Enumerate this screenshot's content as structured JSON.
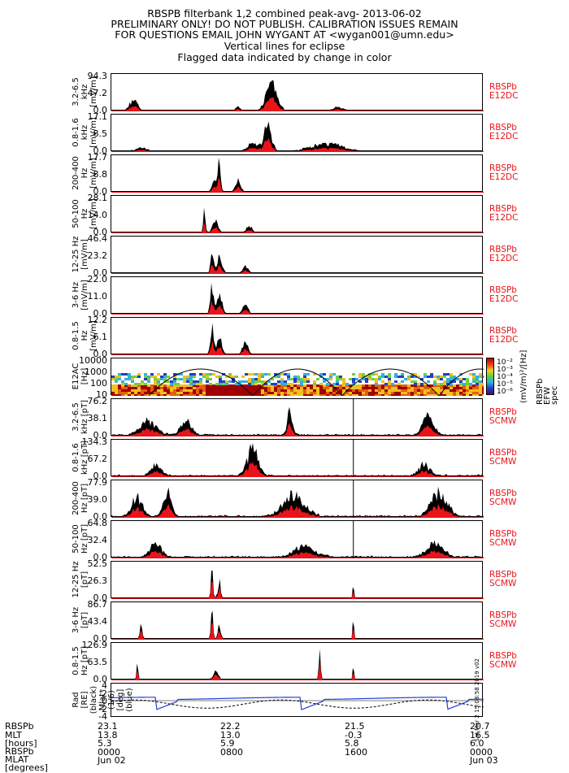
{
  "header": {
    "line1": "RBSPB filterbank 1,2 combined peak-avg- 2013-06-02",
    "line2": "PRELIMINARY ONLY! DO NOT PUBLISH. CALIBRATION ISSUES REMAIN",
    "line3": "FOR QUESTIONS EMAIL JOHN WYGANT AT <wygan001@umn.edu>",
    "line4": "Vertical lines for eclipse",
    "line5": "Flagged data indicated by change in color"
  },
  "colors": {
    "peak": "#000000",
    "avg": "#e8141a",
    "label": "#e8141a",
    "mlat": "#1f3fd8"
  },
  "chart_data": [
    {
      "type": "area",
      "ylabel": "3.2-6.5 kHz [mV/m]",
      "yticks": [
        "0.0",
        "47.2",
        "94.3"
      ],
      "ylim": [
        0,
        94.3
      ],
      "instrument": "RBSPb",
      "sensor": "E12DC"
    },
    {
      "type": "area",
      "ylabel": "0.8-1.6 kHz [mV/m]",
      "yticks": [
        "0.0",
        "8.5",
        "17.1"
      ],
      "ylim": [
        0,
        17.1
      ],
      "instrument": "RBSPb",
      "sensor": "E12DC"
    },
    {
      "type": "area",
      "ylabel": "200-400 Hz [mV/m]",
      "yticks": [
        "0.0",
        "8.8",
        "17.7"
      ],
      "ylim": [
        0,
        17.7
      ],
      "instrument": "RBSPb",
      "sensor": "E12DC"
    },
    {
      "type": "area",
      "ylabel": "50-100 Hz [mV/m]",
      "yticks": [
        "0.0",
        "14.0",
        "28.1"
      ],
      "ylim": [
        0,
        28.1
      ],
      "instrument": "RBSPb",
      "sensor": "E12DC"
    },
    {
      "type": "area",
      "ylabel": "12-25 Hz [mV/m]",
      "yticks": [
        "0.0",
        "23.2",
        "46.4"
      ],
      "ylim": [
        0,
        46.4
      ],
      "instrument": "RBSPb",
      "sensor": "E12DC"
    },
    {
      "type": "area",
      "ylabel": "3-6 Hz [mV/m]",
      "yticks": [
        "0.0",
        "11.0",
        "22.0"
      ],
      "ylim": [
        0,
        22.0
      ],
      "instrument": "RBSPb",
      "sensor": "E12DC"
    },
    {
      "type": "area",
      "ylabel": "0.8-1.5 Hz [mV/m]",
      "yticks": [
        "0.0",
        "6.1",
        "12.2"
      ],
      "ylim": [
        0,
        12.2
      ],
      "instrument": "RBSPb",
      "sensor": "E12DC"
    },
    {
      "type": "heatmap",
      "ylabel": "E12AC [Hz]",
      "yticks": [
        "10",
        "100",
        "1000",
        "10000"
      ],
      "colorbar_label": "(mV/m)²/[Hz]",
      "colorbar_title": "RBSPb EFW spec",
      "colorbar_ticks": [
        "10⁻²",
        "10⁻³",
        "10⁻⁴",
        "10⁻⁵",
        "10⁻⁶"
      ]
    },
    {
      "type": "area",
      "ylabel": "3.2-6.5 kHz [pT]",
      "yticks": [
        "0.0",
        "38.1",
        "76.2"
      ],
      "ylim": [
        0,
        76.2
      ],
      "instrument": "RBSPb",
      "sensor": "SCMW"
    },
    {
      "type": "area",
      "ylabel": "0.8-1.6 kHz [pT]",
      "yticks": [
        "0.0",
        "67.2",
        "134.3"
      ],
      "ylim": [
        0,
        134.3
      ],
      "instrument": "RBSPb",
      "sensor": "SCMW"
    },
    {
      "type": "area",
      "ylabel": "200-400 Hz [pT]",
      "yticks": [
        "0.0",
        "39.0",
        "77.9"
      ],
      "ylim": [
        0,
        77.9
      ],
      "instrument": "RBSPb",
      "sensor": "SCMW"
    },
    {
      "type": "area",
      "ylabel": "50-100 Hz [pT]",
      "yticks": [
        "0.0",
        "32.4",
        "64.8"
      ],
      "ylim": [
        0,
        64.8
      ],
      "instrument": "RBSPb",
      "sensor": "SCMW"
    },
    {
      "type": "area",
      "ylabel": "12-25 Hz [pT]",
      "yticks": [
        "0.0",
        "26.3",
        "52.5"
      ],
      "ylim": [
        0,
        52.5
      ],
      "instrument": "RBSPb",
      "sensor": "SCMW"
    },
    {
      "type": "area",
      "ylabel": "3-6 Hz [pT]",
      "yticks": [
        "0.0",
        "43.4",
        "86.7"
      ],
      "ylim": [
        0,
        86.7
      ],
      "instrument": "RBSPb",
      "sensor": "SCMW"
    },
    {
      "type": "area",
      "ylabel": "0.8-1.5 Hz [pT]",
      "yticks": [
        "0.0",
        "63.5",
        "126.9"
      ],
      "ylim": [
        0,
        126.9
      ],
      "instrument": "RBSPb",
      "sensor": "SCMW"
    },
    {
      "type": "line",
      "ylabel": "Rad [RE] (black) Mlat*(1/6) [deg] (blue)",
      "yticks": [
        "-4",
        "-2",
        "0",
        "2",
        "4"
      ],
      "ylim": [
        -5,
        5
      ]
    }
  ],
  "side_note": "Sat Mar  2 15:08:58 2019 v02",
  "footer": {
    "labels": [
      "RBSPb",
      "MLT",
      "[hours]",
      "RBSPb",
      "MLAT",
      "[degrees]"
    ],
    "columns": [
      {
        "rad": "23.1",
        "mlt": "13.8",
        "lshell": "5.3",
        "time": "0000",
        "date": "Jun 02"
      },
      {
        "rad": "22.2",
        "mlt": "13.0",
        "lshell": "5.9",
        "time": "0800",
        "date": ""
      },
      {
        "rad": "21.5",
        "mlt": "-0.3",
        "lshell": "5.8",
        "time": "1600",
        "date": ""
      },
      {
        "rad": "20.7",
        "mlt": "16.5",
        "lshell": "6.0",
        "time": "0000",
        "date": "Jun 03"
      }
    ]
  }
}
